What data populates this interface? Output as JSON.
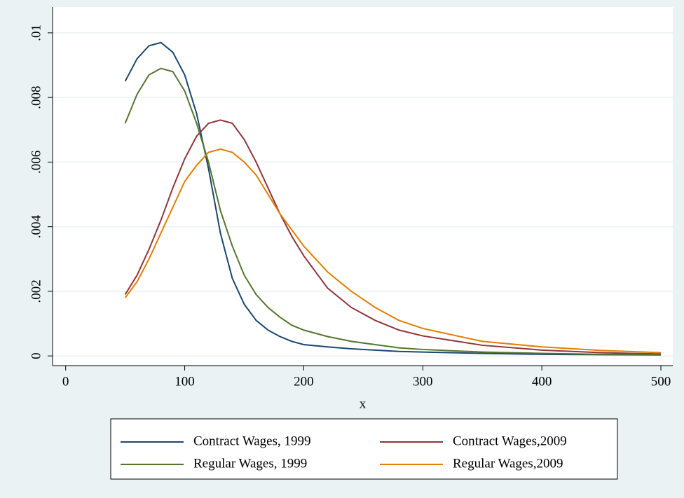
{
  "chart_data": {
    "type": "line",
    "xlabel": "x",
    "x": [
      50,
      60,
      70,
      80,
      90,
      100,
      110,
      120,
      130,
      140,
      150,
      160,
      170,
      180,
      190,
      200,
      220,
      240,
      260,
      280,
      300,
      350,
      400,
      450,
      500
    ],
    "series": [
      {
        "name": "Contract Wages, 1999",
        "color": "#1a476f",
        "values": [
          0.0085,
          0.0092,
          0.0096,
          0.0097,
          0.0094,
          0.0087,
          0.0075,
          0.0058,
          0.0038,
          0.0024,
          0.0016,
          0.0011,
          0.0008,
          0.0006,
          0.00045,
          0.00035,
          0.00028,
          0.00022,
          0.00018,
          0.00014,
          0.00012,
          8e-05,
          5e-05,
          4e-05,
          3e-05
        ]
      },
      {
        "name": "Contract Wages,2009",
        "color": "#90353b",
        "values": [
          0.0019,
          0.0025,
          0.0033,
          0.0042,
          0.0052,
          0.0061,
          0.0068,
          0.0072,
          0.0073,
          0.0072,
          0.0067,
          0.006,
          0.0052,
          0.0044,
          0.0037,
          0.0031,
          0.0021,
          0.0015,
          0.0011,
          0.0008,
          0.00062,
          0.00033,
          0.00018,
          0.0001,
          6e-05
        ]
      },
      {
        "name": "Regular Wages, 1999",
        "color": "#55752f",
        "values": [
          0.0072,
          0.0081,
          0.0087,
          0.0089,
          0.0088,
          0.0082,
          0.0072,
          0.006,
          0.0045,
          0.0034,
          0.0025,
          0.0019,
          0.0015,
          0.0012,
          0.00095,
          0.0008,
          0.0006,
          0.00045,
          0.00035,
          0.00025,
          0.0002,
          0.00012,
          8e-05,
          5e-05,
          4e-05
        ]
      },
      {
        "name": "Regular Wages,2009",
        "color": "#e37e00",
        "values": [
          0.0018,
          0.0023,
          0.003,
          0.0038,
          0.0046,
          0.0054,
          0.0059,
          0.0063,
          0.0064,
          0.0063,
          0.006,
          0.0056,
          0.005,
          0.0044,
          0.0039,
          0.0034,
          0.0026,
          0.002,
          0.0015,
          0.0011,
          0.00085,
          0.00045,
          0.00028,
          0.00017,
          0.0001
        ]
      }
    ],
    "xlim": [
      -11,
      510
    ],
    "xticks": [
      0,
      100,
      200,
      300,
      400,
      500
    ],
    "ylim": [
      -0.0003,
      0.0108
    ],
    "yticks": [
      0,
      {
        "value": 0.002,
        "label": ".002"
      },
      {
        "value": 0.004,
        "label": ".004"
      },
      {
        "value": 0.006,
        "label": ".006"
      },
      {
        "value": 0.008,
        "label": ".008"
      },
      {
        "value": 0.01,
        "label": ".01"
      }
    ],
    "grid": true,
    "legend": "bottom"
  }
}
